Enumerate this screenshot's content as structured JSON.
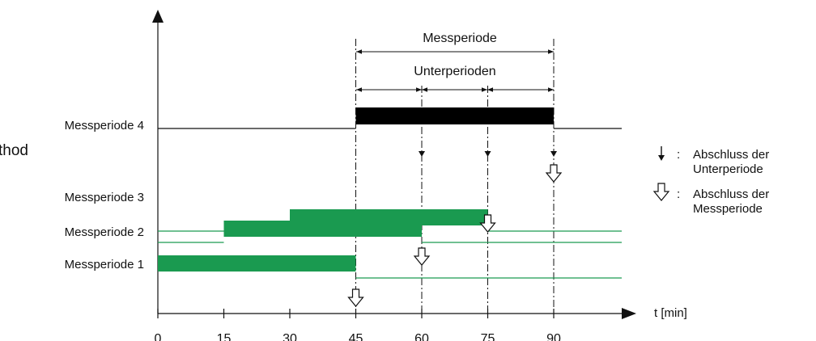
{
  "fragment_left": "thod",
  "header": {
    "messperiode": "Messperiode",
    "unterperioden": "Unterperioden"
  },
  "rows": [
    {
      "label": "Messperiode 4",
      "start": 45,
      "end": 90,
      "color": "#000000"
    },
    {
      "label": "Messperiode 3",
      "start": 30,
      "end": 75,
      "color": "#1a9a50"
    },
    {
      "label": "Messperiode 2",
      "start": 15,
      "end": 60,
      "color": "#1a9a50"
    },
    {
      "label": "Messperiode 1",
      "start": 0,
      "end": 45,
      "color": "#1a9a50"
    }
  ],
  "x_axis": {
    "label": "t [min]",
    "ticks": [
      "0",
      "15",
      "30",
      "45",
      "60",
      "75",
      "90"
    ]
  },
  "legend": {
    "colon": ":",
    "sub": {
      "line1": "Abschluss der",
      "line2": "Unterperiode",
      "icon": "solid-down-arrow-icon"
    },
    "main": {
      "line1": "Abschluss der",
      "line2": "Messperiode",
      "icon": "hollow-down-arrow-icon"
    }
  }
}
